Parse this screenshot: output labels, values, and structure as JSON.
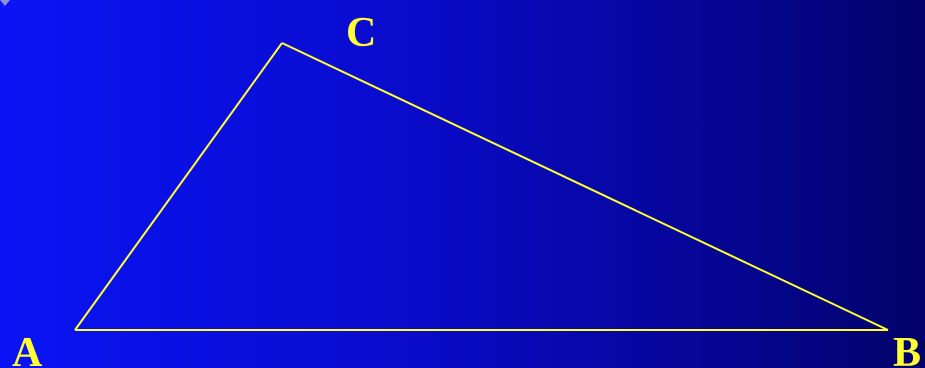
{
  "vertices": {
    "a": "A",
    "b": "B",
    "c": "C"
  },
  "colors": {
    "background_left": "#0a14f5",
    "background_right": "#03036a",
    "line": "#ffff33",
    "label": "#ffff33"
  }
}
